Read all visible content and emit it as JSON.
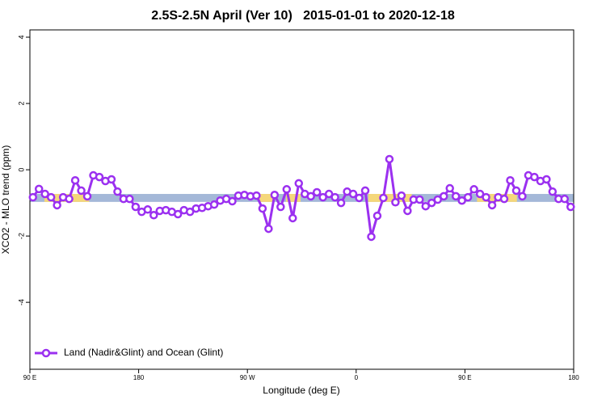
{
  "chart_data": {
    "type": "line",
    "title": "2.5S-2.5N April (Ver 10)   2015-01-01 to 2020-12-18",
    "x_label": "Longitude (deg E)",
    "y_label": "XCO2 - MLO trend (ppm)",
    "xlim": [
      90,
      540
    ],
    "xticks": [
      {
        "value": 90,
        "label": "90 E"
      },
      {
        "value": 180,
        "label": "180"
      },
      {
        "value": 270,
        "label": "90 W"
      },
      {
        "value": 360,
        "label": "0"
      },
      {
        "value": 450,
        "label": "90 E"
      },
      {
        "value": 540,
        "label": "180"
      }
    ],
    "ylim": [
      -6.02,
      4.22
    ],
    "yticks": [
      -4,
      -2,
      0,
      2,
      4
    ],
    "band": {
      "ylim": [
        -0.97,
        -0.73
      ],
      "color": "#a4b8d8",
      "segments": [
        {
          "xlim": [
            102,
            139
          ],
          "color": "#f5d77a"
        },
        {
          "xlim": [
            279,
            292
          ],
          "color": "#f5d77a"
        },
        {
          "xlim": [
            302,
            314
          ],
          "color": "#f5d77a"
        },
        {
          "xlim": [
            370,
            406
          ],
          "color": "#f5d77a"
        },
        {
          "xlim": [
            460,
            493
          ],
          "color": "#f5d77a"
        }
      ]
    },
    "legend": "bottom-left",
    "series": [
      {
        "name": "Land (Nadir&Glint) and Ocean (Glint)",
        "color": "#9b30f0",
        "x": [
          92.5,
          97.5,
          102.5,
          107.5,
          112.5,
          117.5,
          122.5,
          127.5,
          132.5,
          137.5,
          142.5,
          147.5,
          152.5,
          157.5,
          162.5,
          167.5,
          172.5,
          177.5,
          182.5,
          187.5,
          192.5,
          197.5,
          202.5,
          207.5,
          212.5,
          217.5,
          222.5,
          227.5,
          232.5,
          237.5,
          242.5,
          247.5,
          252.5,
          257.5,
          262.5,
          267.5,
          272.5,
          277.5,
          282.5,
          287.5,
          292.5,
          297.5,
          302.5,
          307.5,
          312.5,
          317.5,
          322.5,
          327.5,
          332.5,
          337.5,
          342.5,
          347.5,
          352.5,
          357.5,
          362.5,
          367.5,
          372.5,
          377.5,
          382.5,
          387.5,
          392.5,
          397.5,
          402.5,
          407.5,
          412.5,
          417.5,
          422.5,
          427.5,
          432.5,
          437.5,
          442.5,
          447.5,
          452.5,
          457.5,
          462.5,
          467.5,
          472.5,
          477.5,
          482.5,
          487.5,
          492.5,
          497.5,
          502.5,
          507.5,
          512.5,
          517.5,
          522.5,
          527.5,
          532.5,
          537.5
        ],
        "values": [
          -0.83,
          -0.58,
          -0.73,
          -0.83,
          -1.07,
          -0.83,
          -0.88,
          -0.32,
          -0.63,
          -0.8,
          -0.17,
          -0.22,
          -0.34,
          -0.29,
          -0.66,
          -0.88,
          -0.88,
          -1.12,
          -1.27,
          -1.2,
          -1.37,
          -1.24,
          -1.22,
          -1.27,
          -1.34,
          -1.22,
          -1.27,
          -1.17,
          -1.15,
          -1.1,
          -1.05,
          -0.93,
          -0.88,
          -0.95,
          -0.78,
          -0.76,
          -0.8,
          -0.78,
          -1.17,
          -1.78,
          -0.76,
          -1.12,
          -0.59,
          -1.46,
          -0.41,
          -0.73,
          -0.8,
          -0.68,
          -0.83,
          -0.73,
          -0.83,
          -1.0,
          -0.66,
          -0.73,
          -0.85,
          -0.63,
          -2.02,
          -1.39,
          -0.85,
          0.32,
          -0.98,
          -0.78,
          -1.24,
          -0.9,
          -0.9,
          -1.1,
          -1.0,
          -0.9,
          -0.8,
          -0.56,
          -0.8,
          -0.93,
          -0.83,
          -0.59,
          -0.73,
          -0.83,
          -1.07,
          -0.83,
          -0.88,
          -0.32,
          -0.63,
          -0.8,
          -0.17,
          -0.22,
          -0.34,
          -0.29,
          -0.66,
          -0.88,
          -0.88,
          -1.12
        ]
      }
    ]
  }
}
